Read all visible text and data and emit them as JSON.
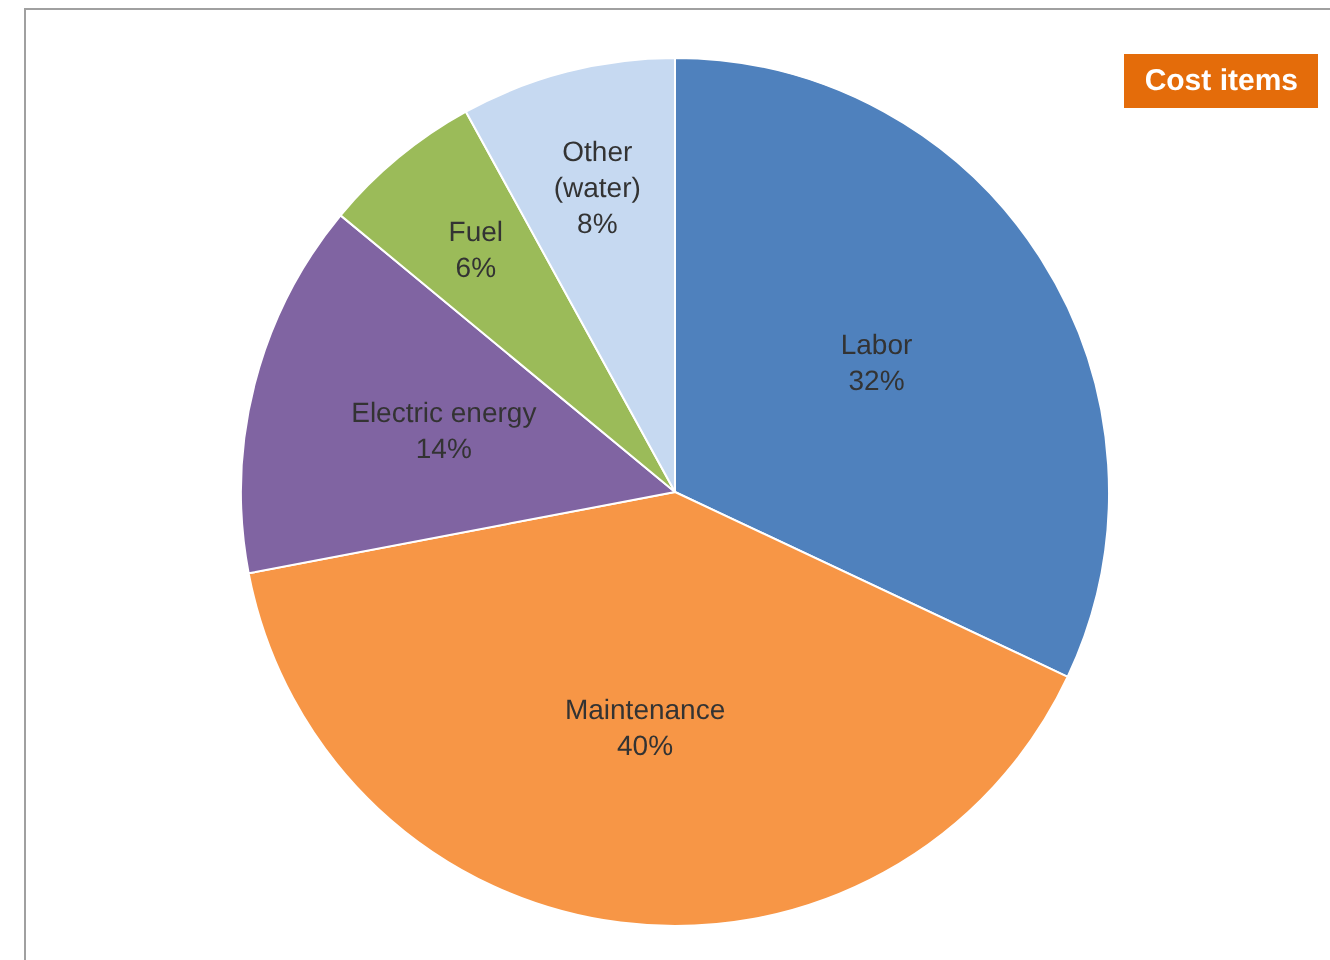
{
  "chart_data": {
    "type": "pie",
    "title": "Cost items",
    "categories": [
      "Labor",
      "Maintenance",
      "Electric energy",
      "Fuel",
      "Other (water)"
    ],
    "values": [
      32,
      40,
      14,
      6,
      8
    ],
    "value_labels": [
      "32%",
      "40%",
      "14%",
      "6%",
      "8%"
    ],
    "colors": [
      "#4f81bd",
      "#f79646",
      "#8064a2",
      "#9bbb59",
      "#c6d9f1"
    ]
  }
}
